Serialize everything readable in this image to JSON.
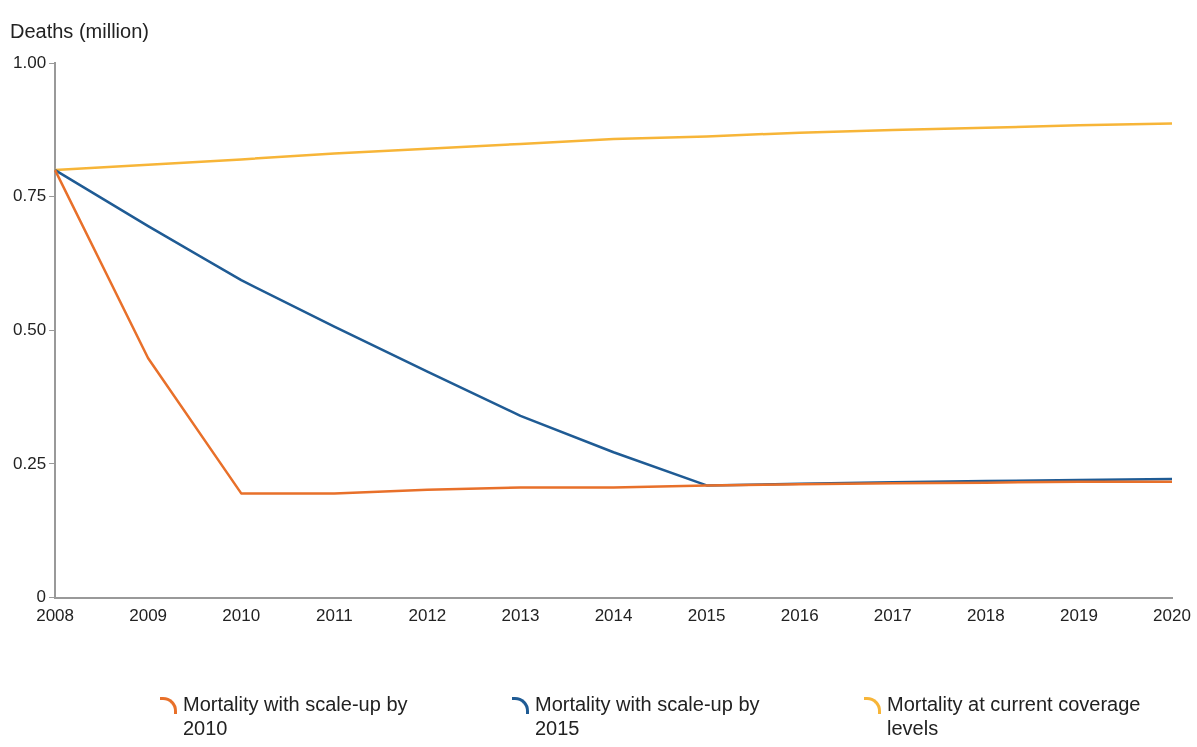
{
  "chart_data": {
    "type": "line",
    "ylabel": "Deaths (million)",
    "categories": [
      "2008",
      "2009",
      "2010",
      "2011",
      "2012",
      "2013",
      "2014",
      "2015",
      "2016",
      "2017",
      "2018",
      "2019",
      "2020"
    ],
    "series": [
      {
        "name": "Mortality with scale-up by 2010",
        "color": "#e8702a",
        "values": [
          0.8,
          0.448,
          0.195,
          0.195,
          0.202,
          0.206,
          0.206,
          0.21,
          0.212,
          0.214,
          0.215,
          0.217,
          0.217
        ]
      },
      {
        "name": "Mortality with scale-up by 2015",
        "color": "#1f5b94",
        "values": [
          0.8,
          0.695,
          0.594,
          0.507,
          0.423,
          0.34,
          0.272,
          0.21,
          0.213,
          0.216,
          0.218,
          0.22,
          0.222
        ]
      },
      {
        "name": "Mortality at current coverage levels",
        "color": "#f7b538",
        "values": [
          0.8,
          0.81,
          0.82,
          0.831,
          0.84,
          0.849,
          0.858,
          0.863,
          0.87,
          0.875,
          0.879,
          0.884,
          0.887
        ]
      }
    ],
    "ylim": [
      0,
      1
    ],
    "yticks": [
      {
        "value": 0,
        "label": "0"
      },
      {
        "value": 0.25,
        "label": "0.25"
      },
      {
        "value": 0.5,
        "label": "0.50"
      },
      {
        "value": 0.75,
        "label": "0.75"
      },
      {
        "value": 1,
        "label": "1.00"
      }
    ],
    "grid": false,
    "legend": "bottom",
    "marker": "none",
    "line_style": "solid"
  }
}
